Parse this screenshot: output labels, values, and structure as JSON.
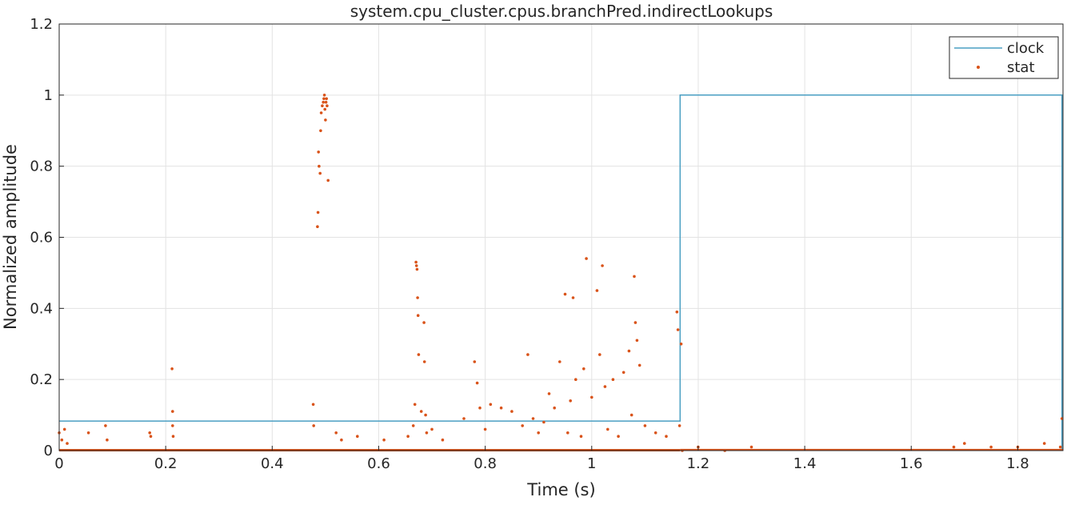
{
  "chart_data": {
    "type": "line+scatter",
    "title": "system.cpu_cluster.cpus.branchPred.indirectLookups",
    "xlabel": "Time (s)",
    "ylabel": "Normalized amplitude",
    "xlim": [
      0,
      1.885
    ],
    "ylim": [
      0,
      1.2
    ],
    "xticks": [
      0,
      0.2,
      0.4,
      0.6,
      0.8,
      1,
      1.2,
      1.4,
      1.6,
      1.8
    ],
    "xtick_labels": [
      "0",
      "0.2",
      "0.4",
      "0.6",
      "0.8",
      "1",
      "1.2",
      "1.4",
      "1.6",
      "1.8"
    ],
    "yticks": [
      0,
      0.2,
      0.4,
      0.6,
      0.8,
      1,
      1.2
    ],
    "ytick_labels": [
      "0",
      "0.2",
      "0.4",
      "0.6",
      "0.8",
      "1",
      "1.2"
    ],
    "grid": true,
    "legend_position": "top-right",
    "colors": {
      "clock": "#4a9fc3",
      "stat": "#d95319",
      "grid": "#e3e3e3",
      "axis": "#262626"
    },
    "series": [
      {
        "name": "clock",
        "type": "line",
        "x": [
          0,
          1.166,
          1.166,
          1.883,
          1.883
        ],
        "y": [
          0.083,
          0.083,
          1.0,
          1.0,
          0.0
        ]
      },
      {
        "name": "stat",
        "type": "scatter",
        "x": [
          0,
          0.005,
          0.01,
          0.015,
          0.055,
          0.087,
          0.09,
          0.17,
          0.172,
          0.212,
          0.213,
          0.213,
          0.214,
          0.477,
          0.478,
          0.485,
          0.486,
          0.487,
          0.488,
          0.49,
          0.491,
          0.492,
          0.494,
          0.496,
          0.497,
          0.498,
          0.499,
          0.5,
          0.501,
          0.502,
          0.503,
          0.505,
          0.52,
          0.53,
          0.56,
          0.61,
          0.655,
          0.665,
          0.668,
          0.67,
          0.671,
          0.672,
          0.673,
          0.674,
          0.675,
          0.68,
          0.685,
          0.686,
          0.688,
          0.69,
          0.7,
          0.72,
          0.76,
          0.78,
          0.785,
          0.79,
          0.8,
          0.81,
          0.83,
          0.85,
          0.87,
          0.88,
          0.89,
          0.9,
          0.91,
          0.92,
          0.93,
          0.94,
          0.95,
          0.955,
          0.96,
          0.965,
          0.97,
          0.98,
          0.985,
          0.99,
          1.0,
          1.01,
          1.015,
          1.02,
          1.025,
          1.03,
          1.04,
          1.05,
          1.06,
          1.07,
          1.075,
          1.08,
          1.082,
          1.085,
          1.09,
          1.1,
          1.12,
          1.14,
          1.16,
          1.162,
          1.165,
          1.168,
          1.17,
          1.2,
          1.25,
          1.3,
          1.68,
          1.7,
          1.75,
          1.8,
          1.85,
          1.88,
          1.883
        ],
        "y": [
          0.05,
          0.03,
          0.06,
          0.02,
          0.05,
          0.07,
          0.03,
          0.05,
          0.04,
          0.23,
          0.11,
          0.07,
          0.04,
          0.13,
          0.07,
          0.63,
          0.67,
          0.84,
          0.8,
          0.78,
          0.9,
          0.95,
          0.97,
          0.98,
          0.99,
          1.0,
          0.96,
          0.93,
          0.98,
          0.99,
          0.97,
          0.76,
          0.05,
          0.03,
          0.04,
          0.03,
          0.04,
          0.07,
          0.13,
          0.53,
          0.52,
          0.51,
          0.43,
          0.38,
          0.27,
          0.11,
          0.36,
          0.25,
          0.1,
          0.05,
          0.06,
          0.03,
          0.09,
          0.25,
          0.19,
          0.12,
          0.06,
          0.13,
          0.12,
          0.11,
          0.07,
          0.27,
          0.09,
          0.05,
          0.08,
          0.16,
          0.12,
          0.25,
          0.44,
          0.05,
          0.14,
          0.43,
          0.2,
          0.04,
          0.23,
          0.54,
          0.15,
          0.45,
          0.27,
          0.52,
          0.18,
          0.06,
          0.2,
          0.04,
          0.22,
          0.28,
          0.1,
          0.49,
          0.36,
          0.31,
          0.24,
          0.07,
          0.05,
          0.04,
          0.39,
          0.34,
          0.07,
          0.3,
          0.0,
          0.01,
          0.0,
          0.01,
          0.01,
          0.02,
          0.01,
          0.01,
          0.02,
          0.01,
          0.09
        ]
      }
    ]
  }
}
